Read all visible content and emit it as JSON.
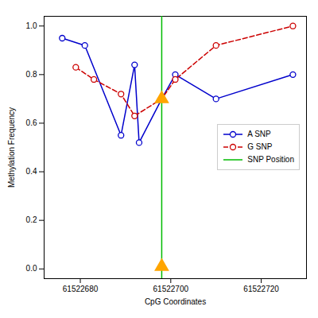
{
  "chart_data": {
    "type": "line",
    "xlabel": "CpG Coordinates",
    "ylabel": "Methylation Frequency",
    "xlim": [
      61522672,
      61522730
    ],
    "ylim": [
      -0.04,
      1.04
    ],
    "xticks": [
      61522680,
      61522700,
      61522720
    ],
    "yticks": [
      {
        "value": 0.0,
        "label": "0.0"
      },
      0.2,
      0.4,
      0.6,
      0.8,
      {
        "value": 1.0,
        "label": "1.0"
      }
    ],
    "grid": false,
    "legend": "right",
    "series": [
      {
        "name": "A SNP",
        "type": "line",
        "color": "#0000CC",
        "marker": "circle",
        "line_style": "solid",
        "x": [
          61522676,
          61522681,
          61522689,
          61522692,
          61522693,
          61522698,
          61522701,
          61522710,
          61522727
        ],
        "values": [
          0.95,
          0.92,
          0.55,
          0.84,
          0.52,
          0.7,
          0.8,
          0.7,
          0.8
        ]
      },
      {
        "name": "G SNP",
        "type": "line",
        "color": "#CC0000",
        "marker": "circle",
        "line_style": "dashed",
        "x": [
          61522679,
          61522683,
          61522689,
          61522692,
          61522698,
          61522701,
          61522710,
          61522727
        ],
        "values": [
          0.83,
          0.78,
          0.72,
          0.63,
          0.7,
          0.78,
          0.92,
          1.0
        ]
      },
      {
        "name": "SNP Position",
        "type": "vline",
        "color": "#00BB00",
        "x": 61522698
      },
      {
        "type": "scatter",
        "color": "#FFA500",
        "marker": "triangle",
        "x": [
          61522698,
          61522698
        ],
        "values": [
          0.7,
          0.01
        ]
      }
    ]
  }
}
